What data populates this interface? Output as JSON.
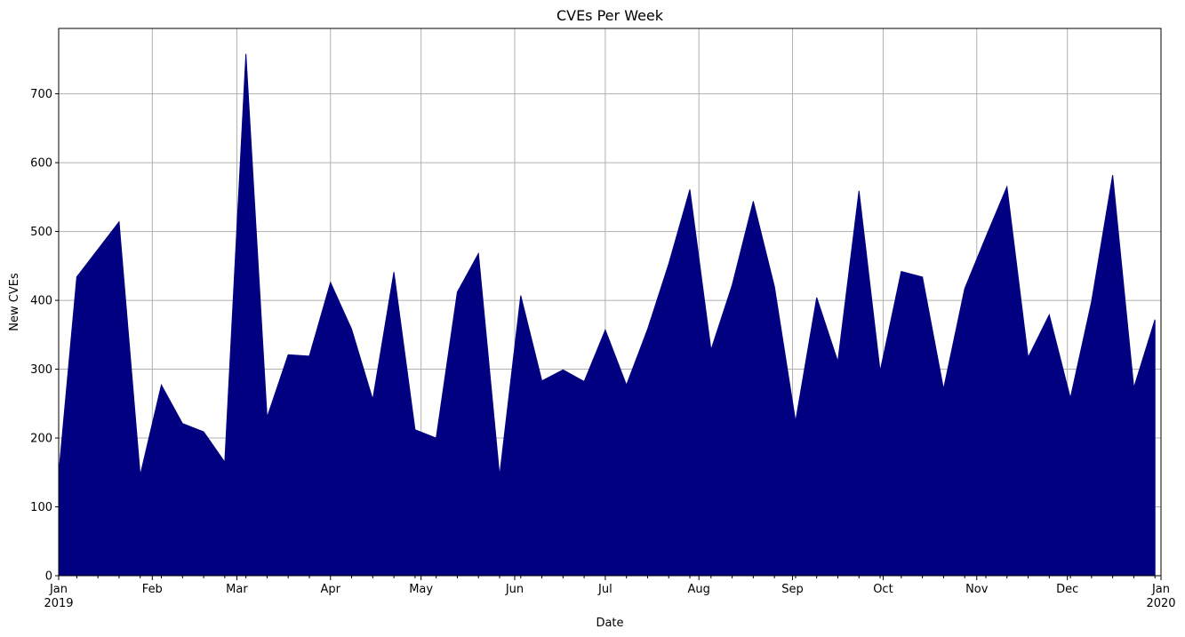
{
  "chart_data": {
    "type": "area",
    "title": "CVEs Per Week",
    "xlabel": "Date",
    "ylabel": "New CVEs",
    "fill_color": "#000080",
    "grid": true,
    "xlim": [
      "2019-01-01",
      "2020-01-01"
    ],
    "ylim": [
      0,
      795
    ],
    "yticks": [
      0,
      100,
      200,
      300,
      400,
      500,
      600,
      700
    ],
    "xticks_major": [
      {
        "date": "2019-01-01",
        "label": "Jan",
        "sublabel": "2019"
      },
      {
        "date": "2019-02-01",
        "label": "Feb",
        "sublabel": ""
      },
      {
        "date": "2019-03-01",
        "label": "Mar",
        "sublabel": ""
      },
      {
        "date": "2019-04-01",
        "label": "Apr",
        "sublabel": ""
      },
      {
        "date": "2019-05-01",
        "label": "May",
        "sublabel": ""
      },
      {
        "date": "2019-06-01",
        "label": "Jun",
        "sublabel": ""
      },
      {
        "date": "2019-07-01",
        "label": "Jul",
        "sublabel": ""
      },
      {
        "date": "2019-08-01",
        "label": "Aug",
        "sublabel": ""
      },
      {
        "date": "2019-09-01",
        "label": "Sep",
        "sublabel": ""
      },
      {
        "date": "2019-10-01",
        "label": "Oct",
        "sublabel": ""
      },
      {
        "date": "2019-11-01",
        "label": "Nov",
        "sublabel": ""
      },
      {
        "date": "2019-12-01",
        "label": "Dec",
        "sublabel": ""
      },
      {
        "date": "2020-01-01",
        "label": "Jan",
        "sublabel": "2020"
      }
    ],
    "x": [
      "2019-01-01",
      "2019-01-07",
      "2019-01-14",
      "2019-01-21",
      "2019-01-28",
      "2019-02-04",
      "2019-02-11",
      "2019-02-18",
      "2019-02-25",
      "2019-03-04",
      "2019-03-11",
      "2019-03-18",
      "2019-03-25",
      "2019-04-01",
      "2019-04-08",
      "2019-04-15",
      "2019-04-22",
      "2019-04-29",
      "2019-05-06",
      "2019-05-13",
      "2019-05-20",
      "2019-05-27",
      "2019-06-03",
      "2019-06-10",
      "2019-06-17",
      "2019-06-24",
      "2019-07-01",
      "2019-07-08",
      "2019-07-15",
      "2019-07-22",
      "2019-07-29",
      "2019-08-05",
      "2019-08-12",
      "2019-08-19",
      "2019-08-26",
      "2019-09-02",
      "2019-09-09",
      "2019-09-16",
      "2019-09-23",
      "2019-09-30",
      "2019-10-07",
      "2019-10-14",
      "2019-10-21",
      "2019-10-28",
      "2019-11-04",
      "2019-11-11",
      "2019-11-18",
      "2019-11-25",
      "2019-12-02",
      "2019-12-09",
      "2019-12-16",
      "2019-12-23",
      "2019-12-30"
    ],
    "values": [
      147,
      434,
      474,
      514,
      146,
      277,
      221,
      209,
      165,
      758,
      230,
      321,
      319,
      426,
      358,
      256,
      441,
      212,
      200,
      412,
      468,
      145,
      407,
      283,
      299,
      282,
      357,
      277,
      358,
      453,
      561,
      328,
      422,
      544,
      420,
      224,
      404,
      311,
      559,
      297,
      442,
      434,
      271,
      417,
      492,
      565,
      317,
      379,
      258,
      398,
      582,
      273,
      372
    ]
  }
}
